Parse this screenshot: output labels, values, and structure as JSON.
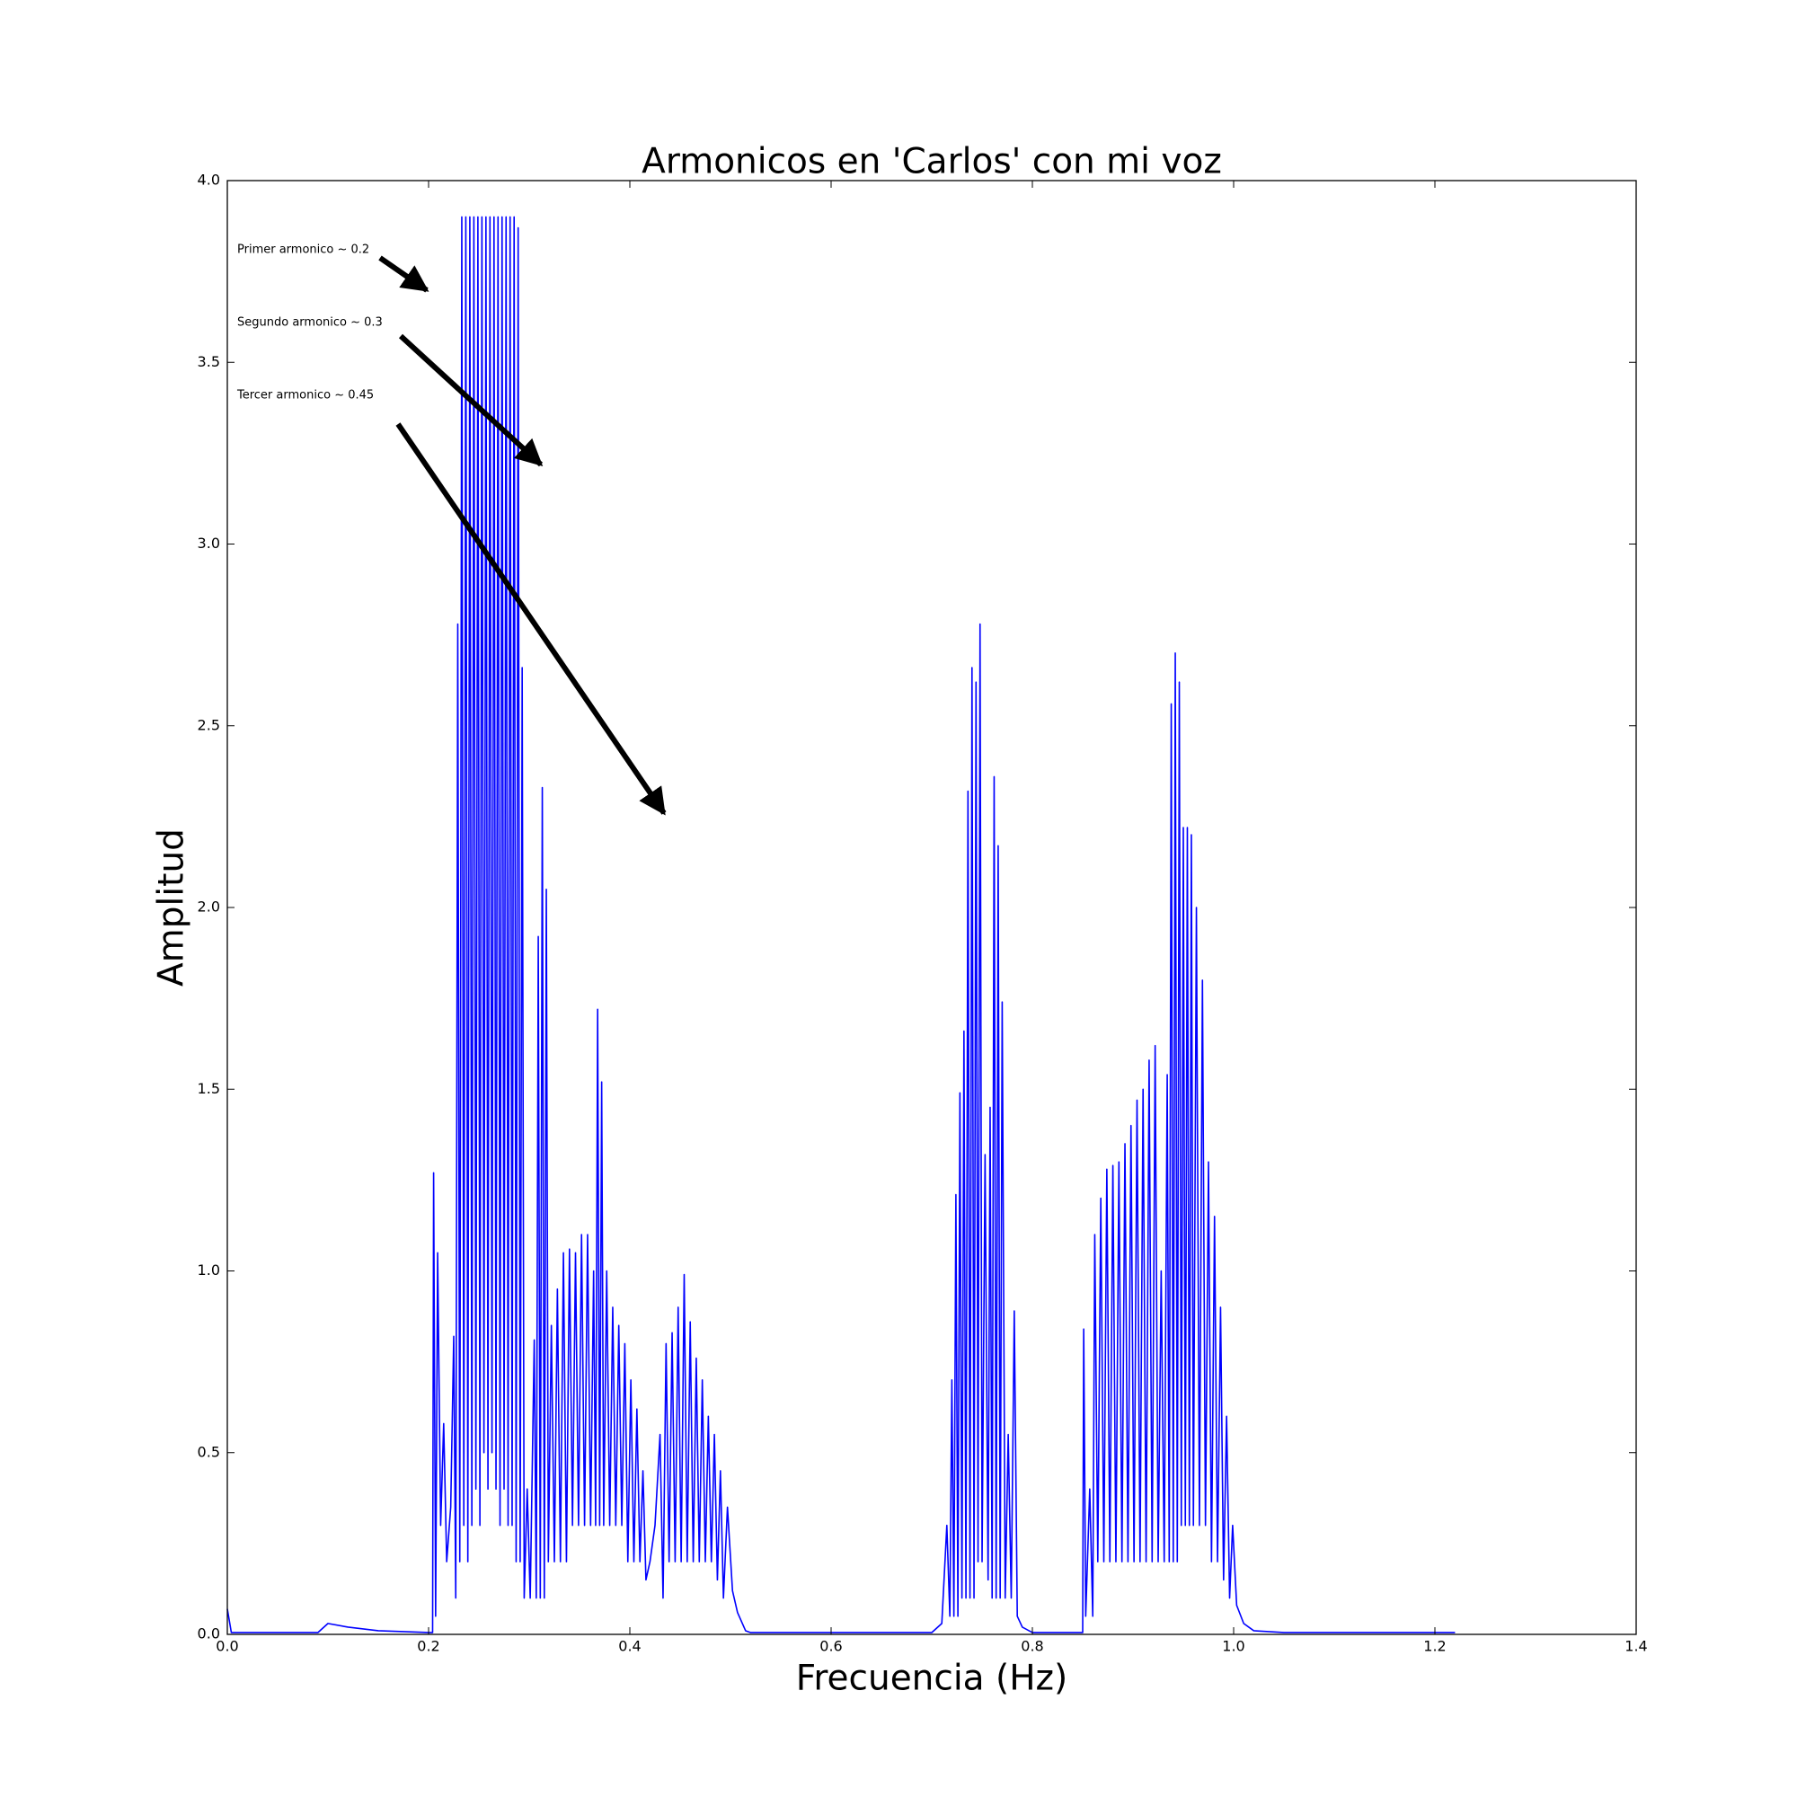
{
  "chart_data": {
    "type": "line",
    "title": "Armonicos en 'Carlos' con mi voz",
    "xlabel": "Frecuencia (Hz)",
    "ylabel": "Amplitud",
    "annotations": [
      "Primer armonico ~ 0.2",
      "Segundo armonico ~ 0.3",
      "Tercer armonico ~ 0.45"
    ],
    "xlim": [
      0,
      1.4
    ],
    "ylim": [
      0,
      4
    ],
    "xticks": [
      {
        "value": 0,
        "label": "0.0"
      },
      0.2,
      0.4,
      0.6,
      0.8,
      {
        "value": 1,
        "label": "1.0"
      },
      1.2,
      1.4
    ],
    "yticks": [
      {
        "value": 0,
        "label": "0.0"
      },
      0.5,
      {
        "value": 1,
        "label": "1.0"
      },
      1.5,
      {
        "value": 2,
        "label": "2.0"
      },
      2.5,
      {
        "value": 3,
        "label": "3.0"
      },
      3.5,
      {
        "value": 4,
        "label": "4.0"
      }
    ],
    "x": [
      0,
      0.004,
      0.09,
      0.1,
      0.12,
      0.15,
      0.2,
      0.204,
      0.205,
      0.207,
      0.209,
      0.212,
      0.215,
      0.218,
      0.222,
      0.225,
      0.227,
      0.229,
      0.231,
      0.233,
      0.235,
      0.237,
      0.239,
      0.241,
      0.243,
      0.245,
      0.247,
      0.249,
      0.251,
      0.253,
      0.255,
      0.257,
      0.259,
      0.261,
      0.263,
      0.265,
      0.267,
      0.269,
      0.271,
      0.273,
      0.275,
      0.277,
      0.279,
      0.281,
      0.283,
      0.285,
      0.287,
      0.289,
      0.291,
      0.293,
      0.295,
      0.298,
      0.301,
      0.305,
      0.307,
      0.309,
      0.311,
      0.313,
      0.315,
      0.317,
      0.319,
      0.322,
      0.325,
      0.328,
      0.331,
      0.334,
      0.337,
      0.34,
      0.343,
      0.346,
      0.349,
      0.352,
      0.355,
      0.358,
      0.361,
      0.364,
      0.366,
      0.368,
      0.37,
      0.372,
      0.374,
      0.377,
      0.38,
      0.383,
      0.386,
      0.389,
      0.392,
      0.395,
      0.398,
      0.401,
      0.404,
      0.407,
      0.41,
      0.413,
      0.416,
      0.42,
      0.425,
      0.43,
      0.433,
      0.436,
      0.439,
      0.442,
      0.445,
      0.448,
      0.451,
      0.454,
      0.457,
      0.46,
      0.463,
      0.466,
      0.469,
      0.472,
      0.475,
      0.478,
      0.481,
      0.484,
      0.487,
      0.49,
      0.493,
      0.497,
      0.502,
      0.507,
      0.515,
      0.52,
      0.7,
      0.71,
      0.715,
      0.718,
      0.72,
      0.722,
      0.724,
      0.726,
      0.728,
      0.73,
      0.732,
      0.734,
      0.736,
      0.738,
      0.74,
      0.742,
      0.744,
      0.746,
      0.748,
      0.75,
      0.753,
      0.756,
      0.758,
      0.76,
      0.762,
      0.764,
      0.766,
      0.768,
      0.77,
      0.773,
      0.776,
      0.779,
      0.782,
      0.785,
      0.79,
      0.8,
      0.85,
      0.851,
      0.853,
      0.857,
      0.86,
      0.862,
      0.865,
      0.868,
      0.871,
      0.874,
      0.877,
      0.88,
      0.883,
      0.886,
      0.889,
      0.892,
      0.895,
      0.898,
      0.901,
      0.904,
      0.907,
      0.91,
      0.913,
      0.916,
      0.919,
      0.922,
      0.925,
      0.928,
      0.931,
      0.934,
      0.936,
      0.938,
      0.94,
      0.942,
      0.944,
      0.946,
      0.948,
      0.95,
      0.952,
      0.954,
      0.956,
      0.958,
      0.96,
      0.963,
      0.966,
      0.969,
      0.972,
      0.975,
      0.978,
      0.981,
      0.984,
      0.987,
      0.99,
      0.993,
      0.996,
      0.999,
      1.003,
      1.01,
      1.02,
      1.05,
      1.22
    ],
    "series": [
      {
        "color": "#0000ff",
        "values": [
          0.07,
          0.005,
          0.005,
          0.03,
          0.02,
          0.01,
          0.005,
          0.005,
          1.27,
          0.05,
          1.05,
          0.3,
          0.58,
          0.2,
          0.35,
          0.82,
          0.1,
          2.78,
          0.2,
          3.9,
          0.3,
          3.9,
          0.2,
          3.9,
          0.3,
          3.9,
          0.4,
          3.9,
          0.3,
          3.9,
          0.5,
          3.9,
          0.4,
          3.9,
          0.5,
          3.9,
          0.4,
          3.9,
          0.3,
          3.9,
          0.4,
          3.9,
          0.3,
          3.9,
          0.3,
          3.9,
          0.2,
          3.87,
          0.2,
          2.66,
          0.1,
          0.4,
          0.1,
          0.81,
          0.1,
          1.92,
          0.1,
          2.33,
          0.1,
          2.05,
          0.2,
          0.85,
          0.2,
          0.95,
          0.2,
          1.05,
          0.2,
          1.06,
          0.3,
          1.05,
          0.3,
          1.1,
          0.3,
          1.1,
          0.3,
          1.0,
          0.3,
          1.72,
          0.3,
          1.52,
          0.3,
          1.0,
          0.3,
          0.9,
          0.3,
          0.85,
          0.3,
          0.8,
          0.2,
          0.7,
          0.2,
          0.62,
          0.2,
          0.45,
          0.15,
          0.2,
          0.3,
          0.55,
          0.1,
          0.8,
          0.2,
          0.83,
          0.2,
          0.9,
          0.2,
          0.99,
          0.2,
          0.86,
          0.2,
          0.76,
          0.2,
          0.7,
          0.2,
          0.6,
          0.2,
          0.55,
          0.15,
          0.45,
          0.1,
          0.35,
          0.12,
          0.06,
          0.01,
          0.005,
          0.005,
          0.03,
          0.3,
          0.05,
          0.7,
          0.05,
          1.21,
          0.05,
          1.49,
          0.1,
          1.66,
          0.1,
          2.32,
          0.1,
          2.66,
          0.1,
          2.62,
          0.2,
          2.78,
          0.2,
          1.32,
          0.15,
          1.45,
          0.1,
          2.36,
          0.1,
          2.17,
          0.1,
          1.74,
          0.1,
          0.55,
          0.1,
          0.89,
          0.05,
          0.02,
          0.005,
          0.005,
          0.84,
          0.05,
          0.4,
          0.05,
          1.1,
          0.2,
          1.2,
          0.2,
          1.28,
          0.2,
          1.29,
          0.2,
          1.3,
          0.2,
          1.35,
          0.2,
          1.4,
          0.2,
          1.47,
          0.2,
          1.5,
          0.2,
          1.58,
          0.2,
          1.62,
          0.2,
          1.0,
          0.2,
          1.54,
          0.2,
          2.56,
          0.2,
          2.7,
          0.2,
          2.62,
          0.3,
          2.22,
          0.3,
          2.22,
          0.3,
          2.2,
          0.3,
          2.0,
          0.3,
          1.8,
          0.3,
          1.3,
          0.2,
          1.15,
          0.2,
          0.9,
          0.15,
          0.6,
          0.1,
          0.3,
          0.08,
          0.03,
          0.01,
          0.005,
          0.005
        ]
      }
    ]
  }
}
